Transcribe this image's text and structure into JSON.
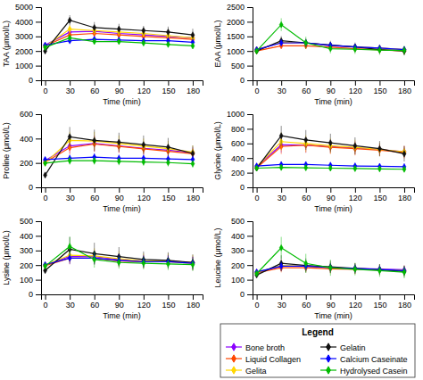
{
  "chart_data": [
    {
      "type": "line",
      "x_label": "Time (min)",
      "y_label": "TAA (μmol/L)",
      "marker": "diamond",
      "grid": false,
      "x": [
        0,
        30,
        60,
        90,
        120,
        150,
        180
      ],
      "xlim": [
        -5,
        192
      ],
      "xticks": [
        0,
        30,
        60,
        90,
        120,
        150,
        180
      ],
      "ylim": [
        0,
        5000
      ],
      "yticks": [
        0,
        1000,
        2000,
        3000,
        4000,
        5000
      ],
      "series": [
        {
          "name": "Bone broth",
          "color": "#8B00FF",
          "values": [
            2400,
            3300,
            3350,
            3200,
            3100,
            3000,
            2900
          ],
          "errors": [
            80,
            250,
            250,
            200,
            200,
            200,
            180
          ]
        },
        {
          "name": "Liquid Collagen",
          "color": "#FF4500",
          "values": [
            2350,
            3100,
            3200,
            3100,
            3000,
            2900,
            2800
          ],
          "errors": [
            80,
            200,
            220,
            200,
            200,
            200,
            180
          ]
        },
        {
          "name": "Gelita",
          "color": "#FFD700",
          "values": [
            2300,
            3500,
            3400,
            3300,
            3200,
            3050,
            2900
          ],
          "errors": [
            80,
            300,
            300,
            260,
            250,
            240,
            220
          ]
        },
        {
          "name": "Gelatin",
          "color": "#111111",
          "values": [
            2000,
            4100,
            3600,
            3500,
            3400,
            3300,
            3100
          ],
          "errors": [
            80,
            350,
            380,
            360,
            320,
            370,
            420
          ]
        },
        {
          "name": "Calcium Caseinate",
          "color": "#0000FF",
          "values": [
            2400,
            2700,
            2800,
            2750,
            2700,
            2700,
            2600
          ],
          "errors": [
            80,
            150,
            200,
            200,
            200,
            200,
            150
          ]
        },
        {
          "name": "Hydrolysed Casein",
          "color": "#00BB00",
          "values": [
            2250,
            2900,
            2650,
            2650,
            2550,
            2450,
            2350
          ],
          "errors": [
            80,
            200,
            200,
            200,
            200,
            200,
            180
          ]
        }
      ]
    },
    {
      "type": "line",
      "x_label": "Time (min)",
      "y_label": "EAA (μmol/L)",
      "marker": "diamond",
      "grid": false,
      "x": [
        0,
        30,
        60,
        90,
        120,
        150,
        180
      ],
      "xlim": [
        -5,
        192
      ],
      "xticks": [
        0,
        30,
        60,
        90,
        120,
        150,
        180
      ],
      "ylim": [
        0,
        2500
      ],
      "yticks": [
        0,
        500,
        1000,
        1500,
        2000,
        2500
      ],
      "series": [
        {
          "name": "Bone broth",
          "color": "#8B00FF",
          "values": [
            1050,
            1280,
            1280,
            1180,
            1140,
            1100,
            1050
          ],
          "errors": [
            40,
            120,
            120,
            110,
            110,
            110,
            110
          ]
        },
        {
          "name": "Liquid Collagen",
          "color": "#FF4500",
          "values": [
            1000,
            1180,
            1180,
            1130,
            1080,
            1040,
            1000
          ],
          "errors": [
            40,
            100,
            100,
            100,
            100,
            100,
            100
          ]
        },
        {
          "name": "Gelita",
          "color": "#FFD700",
          "values": [
            1050,
            1300,
            1280,
            1200,
            1140,
            1100,
            1050
          ],
          "errors": [
            40,
            120,
            120,
            110,
            110,
            110,
            110
          ]
        },
        {
          "name": "Gelatin",
          "color": "#111111",
          "values": [
            1000,
            1350,
            1280,
            1200,
            1140,
            1050,
            1000
          ],
          "errors": [
            40,
            160,
            150,
            150,
            150,
            150,
            150
          ]
        },
        {
          "name": "Calcium Caseinate",
          "color": "#0000FF",
          "values": [
            1050,
            1280,
            1280,
            1200,
            1140,
            1100,
            1050
          ],
          "errors": [
            40,
            120,
            120,
            110,
            110,
            110,
            110
          ]
        },
        {
          "name": "Hydrolysed Casein",
          "color": "#00BB00",
          "values": [
            1000,
            1900,
            1280,
            1080,
            1060,
            1030,
            1020
          ],
          "errors": [
            40,
            220,
            210,
            160,
            160,
            160,
            160
          ]
        }
      ]
    },
    {
      "type": "line",
      "x_label": "Time (min)",
      "y_label": "Proline (μmol/L)",
      "marker": "diamond",
      "grid": false,
      "x": [
        0,
        30,
        60,
        90,
        120,
        150,
        180
      ],
      "xlim": [
        -5,
        192
      ],
      "xticks": [
        0,
        30,
        60,
        90,
        120,
        150,
        180
      ],
      "ylim": [
        0,
        600
      ],
      "yticks": [
        0,
        200,
        400,
        600
      ],
      "series": [
        {
          "name": "Bone broth",
          "color": "#8B00FF",
          "values": [
            220,
            340,
            360,
            340,
            320,
            305,
            285
          ],
          "errors": [
            20,
            60,
            65,
            55,
            50,
            50,
            45
          ]
        },
        {
          "name": "Liquid Collagen",
          "color": "#FF4500",
          "values": [
            205,
            325,
            355,
            335,
            315,
            295,
            275
          ],
          "errors": [
            20,
            55,
            65,
            55,
            50,
            50,
            45
          ]
        },
        {
          "name": "Gelita",
          "color": "#FFD700",
          "values": [
            200,
            385,
            380,
            360,
            338,
            318,
            288
          ],
          "errors": [
            20,
            70,
            75,
            65,
            62,
            62,
            55
          ]
        },
        {
          "name": "Gelatin",
          "color": "#111111",
          "values": [
            100,
            415,
            385,
            370,
            350,
            330,
            278
          ],
          "errors": [
            20,
            80,
            88,
            78,
            75,
            75,
            65
          ]
        },
        {
          "name": "Calcium Caseinate",
          "color": "#0000FF",
          "values": [
            228,
            238,
            248,
            238,
            238,
            233,
            228
          ],
          "errors": [
            20,
            32,
            32,
            32,
            32,
            32,
            32
          ]
        },
        {
          "name": "Hydrolysed Casein",
          "color": "#00BB00",
          "values": [
            198,
            218,
            218,
            213,
            208,
            203,
            193
          ],
          "errors": [
            20,
            32,
            32,
            32,
            32,
            32,
            32
          ]
        }
      ]
    },
    {
      "type": "line",
      "x_label": "Time (min)",
      "y_label": "Glycine (μmol/L)",
      "marker": "diamond",
      "grid": false,
      "x": [
        0,
        30,
        60,
        90,
        120,
        150,
        180
      ],
      "xlim": [
        -5,
        192
      ],
      "xticks": [
        0,
        30,
        60,
        90,
        120,
        150,
        180
      ],
      "ylim": [
        0,
        1000
      ],
      "yticks": [
        0,
        200,
        400,
        600,
        800,
        1000
      ],
      "series": [
        {
          "name": "Bone broth",
          "color": "#8B00FF",
          "values": [
            285,
            580,
            578,
            558,
            538,
            518,
            488
          ],
          "errors": [
            30,
            105,
            105,
            95,
            92,
            82,
            82
          ]
        },
        {
          "name": "Liquid Collagen",
          "color": "#FF4500",
          "values": [
            265,
            558,
            578,
            548,
            528,
            508,
            478
          ],
          "errors": [
            30,
            105,
            105,
            92,
            92,
            82,
            82
          ]
        },
        {
          "name": "Gelita",
          "color": "#FFD700",
          "values": [
            282,
            625,
            598,
            568,
            548,
            518,
            488
          ],
          "errors": [
            30,
            125,
            115,
            105,
            102,
            92,
            82
          ]
        },
        {
          "name": "Gelatin",
          "color": "#111111",
          "values": [
            262,
            705,
            648,
            608,
            568,
            528,
            458
          ],
          "errors": [
            30,
            135,
            135,
            125,
            115,
            105,
            105
          ]
        },
        {
          "name": "Calcium Caseinate",
          "color": "#0000FF",
          "values": [
            292,
            312,
            312,
            302,
            292,
            287,
            282
          ],
          "errors": [
            30,
            42,
            42,
            42,
            42,
            42,
            42
          ]
        },
        {
          "name": "Hydrolysed Casein",
          "color": "#00BB00",
          "values": [
            262,
            272,
            267,
            262,
            257,
            252,
            247
          ],
          "errors": [
            30,
            42,
            42,
            42,
            42,
            42,
            42
          ]
        }
      ]
    },
    {
      "type": "line",
      "x_label": "Time (min)",
      "y_label": "Lysine (μmol/L)",
      "marker": "diamond",
      "grid": false,
      "x": [
        0,
        30,
        60,
        90,
        120,
        150,
        180
      ],
      "xlim": [
        -5,
        192
      ],
      "xticks": [
        0,
        30,
        60,
        90,
        120,
        150,
        180
      ],
      "ylim": [
        0,
        500
      ],
      "yticks": [
        0,
        100,
        200,
        300,
        400,
        500
      ],
      "series": [
        {
          "name": "Bone broth",
          "color": "#8B00FF",
          "values": [
            200,
            260,
            258,
            238,
            228,
            228,
            218
          ],
          "errors": [
            18,
            45,
            42,
            42,
            42,
            42,
            42
          ]
        },
        {
          "name": "Liquid Collagen",
          "color": "#FF4500",
          "values": [
            196,
            248,
            248,
            228,
            223,
            223,
            213
          ],
          "errors": [
            18,
            42,
            42,
            42,
            42,
            42,
            42
          ]
        },
        {
          "name": "Gelita",
          "color": "#FFD700",
          "values": [
            200,
            268,
            263,
            243,
            228,
            228,
            218
          ],
          "errors": [
            18,
            52,
            52,
            52,
            52,
            52,
            52
          ]
        },
        {
          "name": "Gelatin",
          "color": "#111111",
          "values": [
            163,
            308,
            278,
            258,
            238,
            233,
            218
          ],
          "errors": [
            18,
            85,
            75,
            65,
            55,
            55,
            55
          ]
        },
        {
          "name": "Calcium Caseinate",
          "color": "#0000FF",
          "values": [
            203,
            248,
            248,
            233,
            223,
            223,
            213
          ],
          "errors": [
            18,
            42,
            42,
            42,
            42,
            42,
            42
          ]
        },
        {
          "name": "Hydrolysed Casein",
          "color": "#00BB00",
          "values": [
            193,
            328,
            238,
            218,
            213,
            208,
            203
          ],
          "errors": [
            18,
            65,
            55,
            42,
            42,
            42,
            42
          ]
        }
      ]
    },
    {
      "type": "line",
      "x_label": "Time (min)",
      "y_label": "Leucine (μmol/L)",
      "marker": "diamond",
      "grid": false,
      "legend": "lower right",
      "legend_title": "Legend",
      "x": [
        0,
        30,
        60,
        90,
        120,
        150,
        180
      ],
      "xlim": [
        -5,
        192
      ],
      "xticks": [
        0,
        30,
        60,
        90,
        120,
        150,
        180
      ],
      "ylim": [
        0,
        500
      ],
      "yticks": [
        0,
        100,
        200,
        300,
        400,
        500
      ],
      "series": [
        {
          "name": "Bone broth",
          "color": "#8B00FF",
          "values": [
            152,
            192,
            192,
            182,
            178,
            173,
            168
          ],
          "errors": [
            14,
            32,
            32,
            32,
            32,
            32,
            32
          ]
        },
        {
          "name": "Liquid Collagen",
          "color": "#FF4500",
          "values": [
            147,
            182,
            182,
            175,
            172,
            167,
            162
          ],
          "errors": [
            14,
            32,
            32,
            32,
            32,
            32,
            32
          ]
        },
        {
          "name": "Gelita",
          "color": "#FFD700",
          "values": [
            150,
            198,
            193,
            183,
            175,
            170,
            162
          ],
          "errors": [
            14,
            37,
            37,
            37,
            37,
            37,
            37
          ]
        },
        {
          "name": "Gelatin",
          "color": "#111111",
          "values": [
            132,
            212,
            198,
            188,
            178,
            170,
            156
          ],
          "errors": [
            14,
            55,
            48,
            42,
            37,
            37,
            37
          ]
        },
        {
          "name": "Calcium Caseinate",
          "color": "#0000FF",
          "values": [
            153,
            193,
            193,
            183,
            176,
            170,
            162
          ],
          "errors": [
            14,
            32,
            32,
            32,
            32,
            32,
            32
          ]
        },
        {
          "name": "Hydrolysed Casein",
          "color": "#00BB00",
          "values": [
            142,
            318,
            212,
            182,
            172,
            162,
            152
          ],
          "errors": [
            14,
            75,
            65,
            55,
            42,
            42,
            42
          ]
        }
      ]
    }
  ]
}
